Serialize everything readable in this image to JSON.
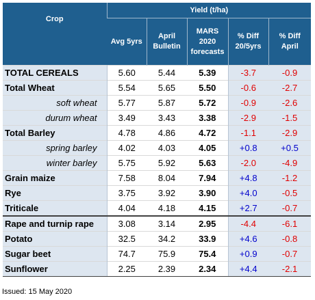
{
  "header": {
    "crop": "Crop",
    "group": "Yield (t/ha)",
    "cols": [
      "Avg 5yrs",
      "April Bulletin",
      "MARS 2020 forecasts",
      "% Diff 20/5yrs",
      "% Diff April"
    ]
  },
  "rows": [
    {
      "crop": "TOTAL CEREALS",
      "avg": "5.60",
      "april": "5.44",
      "mars": "5.39",
      "d5": "-3.7",
      "da": "-0.9"
    },
    {
      "crop": "Total Wheat",
      "avg": "5.54",
      "april": "5.65",
      "mars": "5.50",
      "d5": "-0.6",
      "da": "-2.7"
    },
    {
      "crop": "soft wheat",
      "avg": "5.77",
      "april": "5.87",
      "mars": "5.72",
      "d5": "-0.9",
      "da": "-2.6"
    },
    {
      "crop": "durum wheat",
      "avg": "3.49",
      "april": "3.43",
      "mars": "3.38",
      "d5": "-2.9",
      "da": "-1.5"
    },
    {
      "crop": "Total Barley",
      "avg": "4.78",
      "april": "4.86",
      "mars": "4.72",
      "d5": "-1.1",
      "da": "-2.9"
    },
    {
      "crop": "spring barley",
      "avg": "4.02",
      "april": "4.03",
      "mars": "4.05",
      "d5": "+0.8",
      "da": "+0.5"
    },
    {
      "crop": "winter barley",
      "avg": "5.75",
      "april": "5.92",
      "mars": "5.63",
      "d5": "-2.0",
      "da": "-4.9"
    },
    {
      "crop": "Grain maize",
      "avg": "7.58",
      "april": "8.04",
      "mars": "7.94",
      "d5": "+4.8",
      "da": "-1.2"
    },
    {
      "crop": "Rye",
      "avg": "3.75",
      "april": "3.92",
      "mars": "3.90",
      "d5": "+4.0",
      "da": "-0.5"
    },
    {
      "crop": "Triticale",
      "avg": "4.04",
      "april": "4.18",
      "mars": "4.15",
      "d5": "+2.7",
      "da": "-0.7"
    },
    {
      "crop": "Rape and turnip rape",
      "avg": "3.08",
      "april": "3.14",
      "mars": "2.95",
      "d5": "-4.4",
      "da": "-6.1"
    },
    {
      "crop": "Potato",
      "avg": "32.5",
      "april": "34.2",
      "mars": "33.9",
      "d5": "+4.6",
      "da": "-0.8"
    },
    {
      "crop": "Sugar beet",
      "avg": "74.7",
      "april": "75.9",
      "mars": "75.4",
      "d5": "+0.9",
      "da": "-0.7"
    },
    {
      "crop": "Sunflower",
      "avg": "2.25",
      "april": "2.39",
      "mars": "2.34",
      "d5": "+4.4",
      "da": "-2.1"
    }
  ],
  "footer": {
    "issued": "Issued: 15 May 2020"
  },
  "colors": {
    "header_bg": "#1f5f8f",
    "shade": "#dde6f0",
    "negative": "#e00000",
    "positive": "#0000cc"
  }
}
